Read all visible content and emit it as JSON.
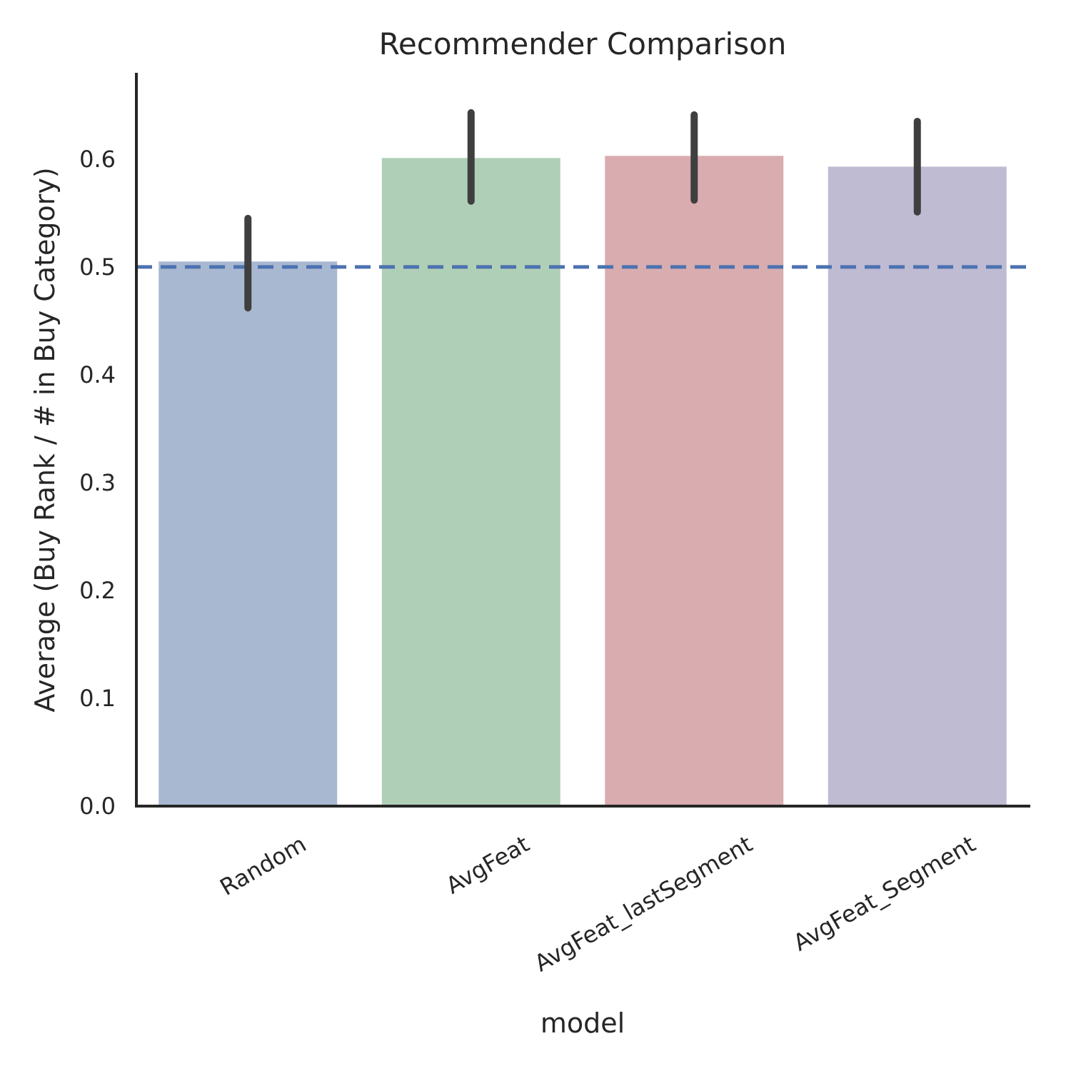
{
  "chart_data": {
    "type": "bar",
    "title": "Recommender Comparison",
    "xlabel": "model",
    "ylabel": "Average (Buy Rank / # in Buy Category)",
    "categories": [
      "Random",
      "AvgFeat",
      "AvgFeat_lastSegment",
      "AvgFeat_Segment"
    ],
    "values": [
      0.505,
      0.601,
      0.603,
      0.593
    ],
    "error_bars": [
      [
        0.462,
        0.545
      ],
      [
        0.561,
        0.643
      ],
      [
        0.562,
        0.641
      ],
      [
        0.551,
        0.635
      ]
    ],
    "colors": [
      "#a9b8d1",
      "#b0cfb7",
      "#d9acb0",
      "#bfbbd3"
    ],
    "error_color": "#3f3f3f",
    "reference_line": {
      "y": 0.5,
      "style": "dashed",
      "color": "#4c72b0"
    },
    "ylim": [
      0,
      0.68
    ],
    "yticks": [
      0.0,
      0.1,
      0.2,
      0.3,
      0.4,
      0.5,
      0.6
    ],
    "ytick_labels": [
      "0.0",
      "0.1",
      "0.2",
      "0.3",
      "0.4",
      "0.5",
      "0.6"
    ],
    "xtick_rotation": 30,
    "grid": false,
    "legend": "none"
  }
}
